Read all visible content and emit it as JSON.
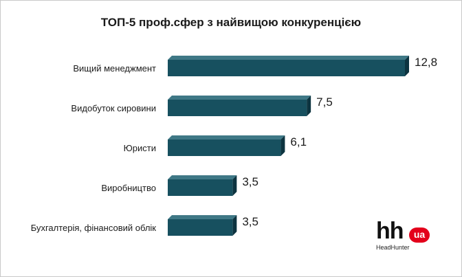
{
  "chart_data": {
    "type": "bar",
    "orientation": "horizontal",
    "title": "ТОП-5 проф.сфер з найвищою конкуренцією",
    "categories": [
      "Вищий менеджмент",
      "Видобуток сировини",
      "Юристи",
      "Виробництво",
      "Бухгалтерія, фінансовий облік"
    ],
    "values": [
      12.8,
      7.5,
      6.1,
      3.5,
      3.5
    ],
    "value_labels": [
      "12,8",
      "7,5",
      "6,1",
      "3,5",
      "3,5"
    ],
    "xlim": [
      0,
      12.8
    ],
    "grid": false,
    "legend": "none",
    "bar_color": "#17505f",
    "bar_side_color": "#0d3440",
    "bar_top_color": "#3f7886"
  },
  "logo": {
    "brand": "hh",
    "badge": "ua",
    "subtitle": "HeadHunter",
    "badge_color": "#e3001b"
  }
}
